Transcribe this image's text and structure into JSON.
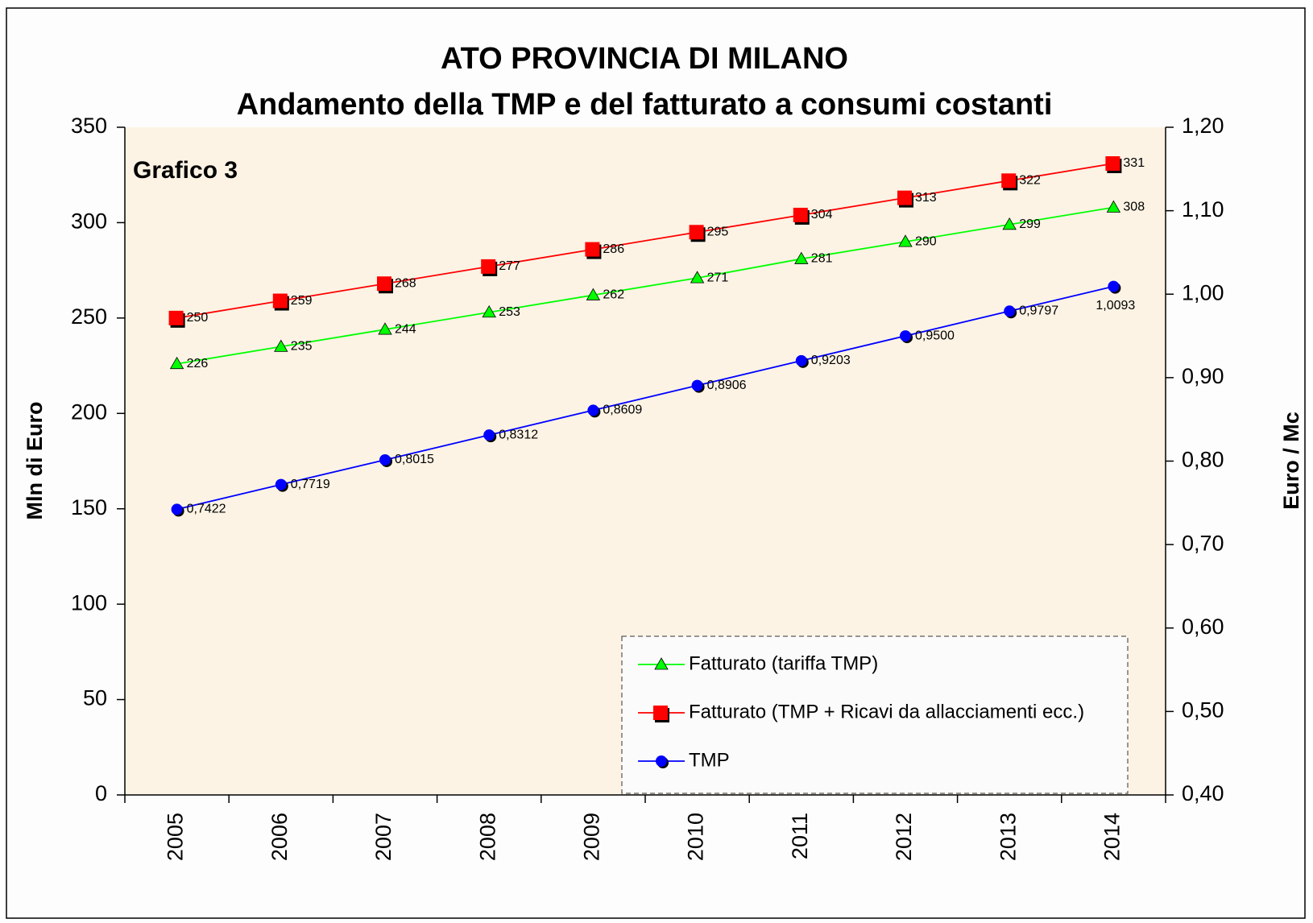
{
  "chart_data": {
    "type": "line",
    "title": "ATO PROVINCIA DI MILANO",
    "subtitle": "Andamento della TMP e del fatturato a consumi costanti",
    "annotation": "Grafico 3",
    "ylabel": "Mln di Euro",
    "y2label": "Euro / Mc",
    "categories": [
      "2005",
      "2006",
      "2007",
      "2008",
      "2009",
      "2010",
      "2011",
      "2012",
      "2013",
      "2014"
    ],
    "ylim": [
      0,
      350
    ],
    "yticks": [
      0,
      50,
      100,
      150,
      200,
      250,
      300,
      350
    ],
    "y2lim": [
      0.4,
      1.2
    ],
    "y2ticks": [
      {
        "value": 0.4,
        "label": "0,40"
      },
      {
        "value": 0.5,
        "label": "0,50"
      },
      {
        "value": 0.6,
        "label": "0,60"
      },
      {
        "value": 0.7,
        "label": "0,70"
      },
      {
        "value": 0.8,
        "label": "0,80"
      },
      {
        "value": 0.9,
        "label": "0,90"
      },
      {
        "value": 1.0,
        "label": "1,00"
      },
      {
        "value": 1.1,
        "label": "1,10"
      },
      {
        "value": 1.2,
        "label": "1,20"
      }
    ],
    "legend": "lower right",
    "series": [
      {
        "name": "Fatturato (tariffa TMP)",
        "color": "#00ff00",
        "marker": "triangle",
        "axis": "y",
        "values": [
          226,
          235,
          244,
          253,
          262,
          271,
          281,
          290,
          299,
          308
        ]
      },
      {
        "name": "Fatturato (TMP + Ricavi da allacciamenti ecc.)",
        "color": "#ff0000",
        "marker": "square",
        "axis": "y",
        "values": [
          250,
          259,
          268,
          277,
          286,
          295,
          304,
          313,
          322,
          331
        ]
      },
      {
        "name": "TMP",
        "color": "#0000ff",
        "marker": "circle",
        "axis": "y2",
        "values": [
          0.7422,
          0.7719,
          0.8015,
          0.8312,
          0.8609,
          0.8906,
          0.9203,
          0.95,
          0.9797,
          1.0093
        ],
        "value_labels": [
          "0,7422",
          "0,7719",
          "0,8015",
          "0,8312",
          "0,8609",
          "0,8906",
          "0,9203",
          "0,9500",
          "0,9797",
          "1,0093"
        ]
      }
    ]
  }
}
